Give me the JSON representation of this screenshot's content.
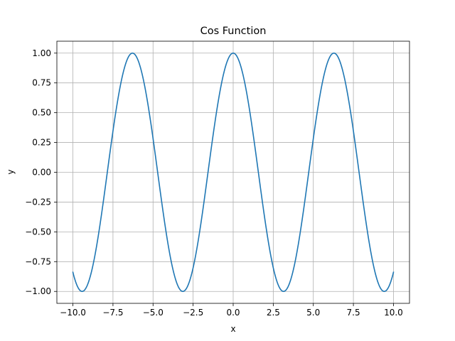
{
  "chart_data": {
    "type": "line",
    "title": "Cos Function",
    "xlabel": "x",
    "ylabel": "y",
    "xlim": [
      -11.0,
      11.0
    ],
    "ylim": [
      -1.1,
      1.1
    ],
    "grid": true,
    "xticks": [
      -10.0,
      -7.5,
      -5.0,
      -2.5,
      0.0,
      2.5,
      5.0,
      7.5,
      10.0
    ],
    "xtick_labels": [
      "−10.0",
      "−7.5",
      "−5.0",
      "−2.5",
      "0.0",
      "2.5",
      "5.0",
      "7.5",
      "10.0"
    ],
    "yticks": [
      -1.0,
      -0.75,
      -0.5,
      -0.25,
      0.0,
      0.25,
      0.5,
      0.75,
      1.0
    ],
    "ytick_labels": [
      "−1.00",
      "−0.75",
      "−0.50",
      "−0.25",
      "0.00",
      "0.25",
      "0.50",
      "0.75",
      "1.00"
    ],
    "series": [
      {
        "color": "#1f77b4",
        "function": "cos(x)",
        "x_range": [
          -10.0,
          10.0
        ],
        "x": [
          -10.0,
          -9.42,
          -6.28,
          -3.14,
          0.0,
          3.14,
          6.28,
          9.42,
          10.0
        ],
        "y": [
          -0.84,
          -1.0,
          1.0,
          -1.0,
          1.0,
          -1.0,
          1.0,
          -1.0,
          -0.84
        ]
      }
    ]
  }
}
